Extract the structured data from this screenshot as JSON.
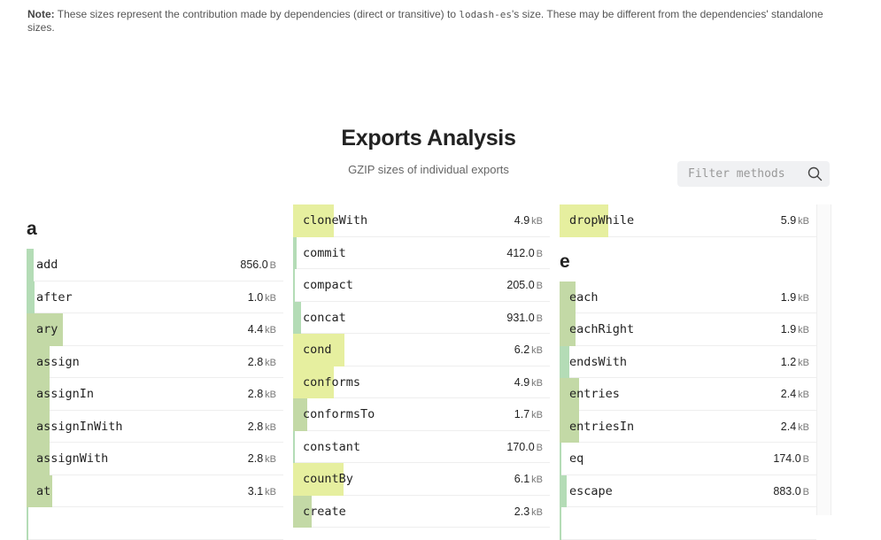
{
  "note": {
    "label": "Note:",
    "text_before": " These sizes represent the contribution made by dependencies (direct or transitive) to ",
    "package": "lodash-es",
    "text_after": "'s size. These may be different from the dependencies' standalone sizes."
  },
  "header": {
    "title": "Exports Analysis",
    "subtitle": "GZIP sizes of individual exports"
  },
  "filter": {
    "placeholder": "Filter methods",
    "icon": "search-icon"
  },
  "colors": {
    "small": "#b4dcb6",
    "medium": "#c3d9a6",
    "large": "#e6ef9f"
  },
  "columns": [
    {
      "groups": [
        {
          "letter": "a",
          "items": [
            {
              "name": "add",
              "value": "856.0",
              "unit": "B"
            },
            {
              "name": "after",
              "value": "1.0",
              "unit": "kB"
            },
            {
              "name": "ary",
              "value": "4.4",
              "unit": "kB"
            },
            {
              "name": "assign",
              "value": "2.8",
              "unit": "kB"
            },
            {
              "name": "assignIn",
              "value": "2.8",
              "unit": "kB"
            },
            {
              "name": "assignInWith",
              "value": "2.8",
              "unit": "kB"
            },
            {
              "name": "assignWith",
              "value": "2.8",
              "unit": "kB"
            },
            {
              "name": "at",
              "value": "3.1",
              "unit": "kB"
            },
            {
              "name": "",
              "value": "",
              "unit": ""
            }
          ]
        }
      ]
    },
    {
      "groups": [
        {
          "letter": "",
          "items": [
            {
              "name": "cloneWith",
              "value": "4.9",
              "unit": "kB"
            },
            {
              "name": "commit",
              "value": "412.0",
              "unit": "B"
            },
            {
              "name": "compact",
              "value": "205.0",
              "unit": "B"
            },
            {
              "name": "concat",
              "value": "931.0",
              "unit": "B"
            },
            {
              "name": "cond",
              "value": "6.2",
              "unit": "kB"
            },
            {
              "name": "conforms",
              "value": "4.9",
              "unit": "kB"
            },
            {
              "name": "conformsTo",
              "value": "1.7",
              "unit": "kB"
            },
            {
              "name": "constant",
              "value": "170.0",
              "unit": "B"
            },
            {
              "name": "countBy",
              "value": "6.1",
              "unit": "kB"
            },
            {
              "name": "create",
              "value": "2.3",
              "unit": "kB"
            }
          ]
        }
      ]
    },
    {
      "groups": [
        {
          "letter": "",
          "items": [
            {
              "name": "dropWhile",
              "value": "5.9",
              "unit": "kB"
            }
          ]
        },
        {
          "letter": "e",
          "items": [
            {
              "name": "each",
              "value": "1.9",
              "unit": "kB"
            },
            {
              "name": "eachRight",
              "value": "1.9",
              "unit": "kB"
            },
            {
              "name": "endsWith",
              "value": "1.2",
              "unit": "kB"
            },
            {
              "name": "entries",
              "value": "2.4",
              "unit": "kB"
            },
            {
              "name": "entriesIn",
              "value": "2.4",
              "unit": "kB"
            },
            {
              "name": "eq",
              "value": "174.0",
              "unit": "B"
            },
            {
              "name": "escape",
              "value": "883.0",
              "unit": "B"
            },
            {
              "name": "",
              "value": "",
              "unit": ""
            }
          ]
        }
      ]
    }
  ]
}
